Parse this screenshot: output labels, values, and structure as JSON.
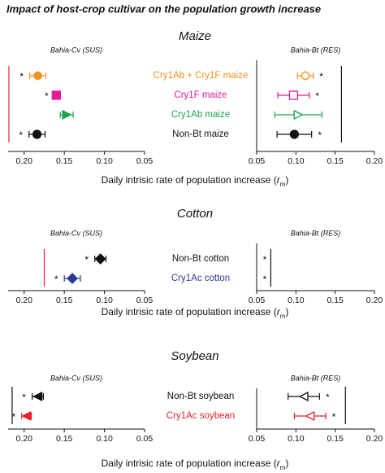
{
  "title": "Impact of host-crop cultivar on the population growth increase",
  "chart_data": [
    {
      "type": "dotplot",
      "title": "Maize",
      "star": "*",
      "categories": [
        "Cry1Ab + Cry1F maize",
        "Cry1F maize",
        "Cry1Ab maize",
        "Non-Bt maize"
      ],
      "colors": [
        "#f0901e",
        "#e5199a",
        "#1aa34a",
        "#111111"
      ],
      "markers": [
        "hexagon",
        "square",
        "triangle-right",
        "circle"
      ],
      "xlabel": [
        "Daily intrisic rate of population increase (",
        "r",
        "m",
        ")"
      ],
      "panels": [
        {
          "subtitle": "Bahia-Cv (SUS)",
          "xlim": [
            0.22,
            0.05
          ],
          "xticks": [
            {
              "value": 0.2,
              "label": "0.20"
            },
            0.15,
            {
              "value": 0.1,
              "label": "0.10"
            },
            0.05
          ],
          "values": [
            0.183,
            0.16,
            0.147,
            0.184
          ],
          "errors": [
            0.01,
            0.002,
            0.008,
            0.01
          ],
          "filled": [
            true,
            true,
            true,
            true
          ],
          "significant": [
            true,
            true,
            false,
            true
          ],
          "ref_line_x": 0.219,
          "ref_line_color": "#e8232a"
        },
        {
          "subtitle": "Bahia-Bt (RES)",
          "xlim": [
            0.05,
            0.2
          ],
          "xticks": [
            0.05,
            {
              "value": 0.1,
              "label": "0.10"
            },
            0.15,
            {
              "value": 0.2,
              "label": "0.20"
            }
          ],
          "values": [
            0.112,
            0.097,
            0.103,
            0.098
          ],
          "errors": [
            0.01,
            0.02,
            0.03,
            0.022
          ],
          "filled": [
            false,
            false,
            false,
            true
          ],
          "significant": [
            true,
            true,
            false,
            true
          ],
          "ref_line_x": 0.158,
          "ref_line_color": "#111111"
        }
      ]
    },
    {
      "type": "dotplot",
      "title": "Cotton",
      "star": "*",
      "categories": [
        "Non-Bt cotton",
        "Cry1Ac cotton"
      ],
      "colors": [
        "#111111",
        "#2b3990"
      ],
      "markers": [
        "diamond",
        "diamond"
      ],
      "xlabel": [
        "Daily intrisic rate of population increase (",
        "r",
        "m",
        ")"
      ],
      "panels": [
        {
          "subtitle": "Bahia-Cv (SUS)",
          "xlim": [
            0.22,
            0.05
          ],
          "xticks": [
            {
              "value": 0.2,
              "label": "0.20"
            },
            0.15,
            {
              "value": 0.1,
              "label": "0.10"
            },
            0.05
          ],
          "values": [
            0.105,
            0.14
          ],
          "errors": [
            0.007,
            0.01
          ],
          "filled": [
            true,
            true
          ],
          "significant": [
            true,
            true
          ],
          "ref_line_x": 0.175,
          "ref_line_color": "#e8232a"
        },
        {
          "subtitle": "Bahia-Bt (RES)",
          "xlim": [
            0.05,
            0.2
          ],
          "xticks": [
            0.05,
            {
              "value": 0.1,
              "label": "0.10"
            },
            0.15,
            {
              "value": 0.2,
              "label": "0.20"
            }
          ],
          "values": [
            null,
            null
          ],
          "errors": [
            null,
            null
          ],
          "filled": [
            false,
            false
          ],
          "significant": [
            true,
            true
          ],
          "ref_line_x": 0.068,
          "ref_line_color": "#111111"
        }
      ]
    },
    {
      "type": "dotplot",
      "title": "Soybean",
      "star": "*",
      "categories": [
        "Non-Bt soybean",
        "Cry1Ac soybean"
      ],
      "colors": [
        "#111111",
        "#e8232a"
      ],
      "markers": [
        "triangle-left",
        "triangle-left"
      ],
      "xlabel": [
        "Daily intrisic rate of population increase (",
        "r",
        "m",
        ")"
      ],
      "panels": [
        {
          "subtitle": "Bahia-Cv (SUS)",
          "xlim": [
            0.22,
            0.05
          ],
          "xticks": [
            {
              "value": 0.2,
              "label": "0.20"
            },
            0.15,
            {
              "value": 0.1,
              "label": "0.10"
            },
            0.05
          ],
          "values": [
            0.183,
            0.197
          ],
          "errors": [
            0.007,
            0.006
          ],
          "filled": [
            true,
            true
          ],
          "significant": [
            true,
            true
          ],
          "ref_line_x": 0.215,
          "ref_line_color": "#111111"
        },
        {
          "subtitle": "Bahia-Bt (RES)",
          "xlim": [
            0.05,
            0.2
          ],
          "xticks": [
            0.05,
            {
              "value": 0.1,
              "label": "0.10"
            },
            0.15,
            {
              "value": 0.2,
              "label": "0.20"
            }
          ],
          "values": [
            0.11,
            0.118
          ],
          "errors": [
            0.02,
            0.02
          ],
          "filled": [
            false,
            false
          ],
          "significant": [
            true,
            true
          ],
          "ref_line_x": 0.163,
          "ref_line_color": "#111111"
        }
      ]
    }
  ]
}
